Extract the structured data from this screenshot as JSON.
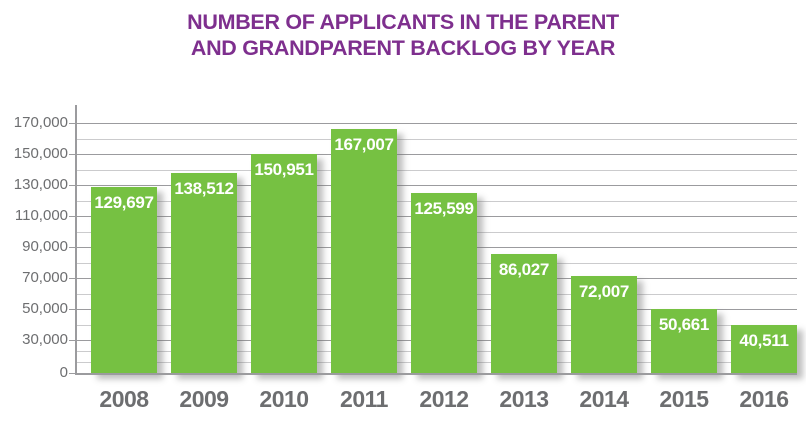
{
  "colors": {
    "bar": "#76C142",
    "title": "#7E2F8E",
    "axis_text": "#6D6E70",
    "grid_minor": "#CBCBCD",
    "grid_major": "#9B9B9E",
    "axis_line": "#9B9B9E",
    "value_label": "#FFFFFF"
  },
  "chart_data": {
    "type": "bar",
    "title": "NUMBER OF APPLICANTS IN THE PARENT AND GRANDPARENT BACKLOG BY YEAR",
    "title_lines": [
      "NUMBER OF APPLICANTS IN THE PARENT",
      "AND GRANDPARENT BACKLOG BY YEAR"
    ],
    "categories": [
      "2008",
      "2009",
      "2010",
      "2011",
      "2012",
      "2013",
      "2014",
      "2015",
      "2016"
    ],
    "values": [
      129697,
      138512,
      150951,
      167007,
      125599,
      86027,
      72007,
      50661,
      40511
    ],
    "value_labels": [
      "129,697",
      "138,512",
      "150,951",
      "167,007",
      "125,599",
      "86,027",
      "72,007",
      "50,661",
      "40,511"
    ],
    "xlabel": "",
    "ylabel": "",
    "ylim": [
      0,
      170000
    ],
    "y_ticks_labeled": [
      {
        "value": 0,
        "label": "0"
      },
      {
        "value": 30000,
        "label": "30,000"
      },
      {
        "value": 50000,
        "label": "50,000"
      },
      {
        "value": 70000,
        "label": "70,000"
      },
      {
        "value": 90000,
        "label": "90,000"
      },
      {
        "value": 110000,
        "label": "110,000"
      },
      {
        "value": 130000,
        "label": "130,000"
      },
      {
        "value": 150000,
        "label": "150,000"
      },
      {
        "value": 170000,
        "label": "170,000"
      }
    ],
    "y_minor_gridline_step": 10000,
    "grid": true,
    "legend": "none",
    "axis_note": "y-axis segment between 0 and 30,000 is visually compressed"
  }
}
